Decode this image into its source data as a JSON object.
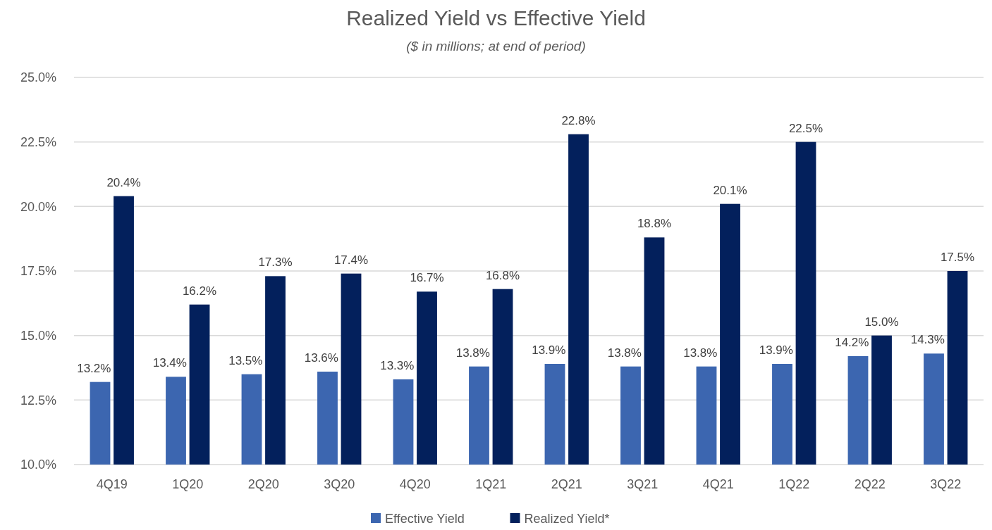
{
  "chart_data": {
    "type": "bar",
    "title": "Realized Yield vs Effective Yield",
    "subtitle": "($ in millions; at end of period)",
    "categories": [
      "4Q19",
      "1Q20",
      "2Q20",
      "3Q20",
      "4Q20",
      "1Q21",
      "2Q21",
      "3Q21",
      "4Q21",
      "1Q22",
      "2Q22",
      "3Q22"
    ],
    "series": [
      {
        "name": "Effective Yield",
        "color": "#3c66b0",
        "values": [
          13.2,
          13.4,
          13.5,
          13.6,
          13.3,
          13.8,
          13.9,
          13.8,
          13.8,
          13.9,
          14.2,
          14.3
        ],
        "value_labels": [
          "13.2%",
          "13.4%",
          "13.5%",
          "13.6%",
          "13.3%",
          "13.8%",
          "13.9%",
          "13.8%",
          "13.8%",
          "13.9%",
          "14.2%",
          "14.3%"
        ]
      },
      {
        "name": "Realized Yield*",
        "color": "#03205c",
        "values": [
          20.4,
          16.2,
          17.3,
          17.4,
          16.7,
          16.8,
          22.8,
          18.8,
          20.1,
          22.5,
          15.0,
          17.5
        ],
        "value_labels": [
          "20.4%",
          "16.2%",
          "17.3%",
          "17.4%",
          "16.7%",
          "16.8%",
          "22.8%",
          "18.8%",
          "20.1%",
          "22.5%",
          "15.0%",
          "17.5%"
        ]
      }
    ],
    "ylim": [
      10,
      25
    ],
    "yticks": [
      {
        "value": 10,
        "label": "10.0%"
      },
      {
        "value": 12.5,
        "label": "12.5%"
      },
      {
        "value": 15,
        "label": "15.0%"
      },
      {
        "value": 17.5,
        "label": "17.5%"
      },
      {
        "value": 20,
        "label": "20.0%"
      },
      {
        "value": 22.5,
        "label": "22.5%"
      },
      {
        "value": 25,
        "label": "25.0%"
      }
    ],
    "grid": "y",
    "legend": "bottom"
  }
}
